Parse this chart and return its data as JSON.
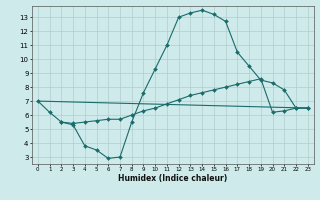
{
  "xlabel": "Humidex (Indice chaleur)",
  "bg_color": "#ceeaea",
  "grid_color": "#b0cccc",
  "line_color": "#1a6b6b",
  "xlim": [
    -0.5,
    23.5
  ],
  "ylim": [
    2.5,
    13.8
  ],
  "xticks": [
    0,
    1,
    2,
    3,
    4,
    5,
    6,
    7,
    8,
    9,
    10,
    11,
    12,
    13,
    14,
    15,
    16,
    17,
    18,
    19,
    20,
    21,
    22,
    23
  ],
  "yticks": [
    3,
    4,
    5,
    6,
    7,
    8,
    9,
    10,
    11,
    12,
    13
  ],
  "line1_x": [
    0,
    1,
    2,
    3,
    4,
    5,
    6,
    7,
    8,
    9,
    10,
    11,
    12,
    13,
    14,
    15,
    16,
    17,
    18,
    19,
    20,
    21,
    22,
    23
  ],
  "line1_y": [
    7.0,
    6.2,
    5.5,
    5.3,
    3.8,
    3.5,
    2.9,
    3.0,
    5.5,
    7.6,
    9.3,
    11.0,
    13.0,
    13.3,
    13.5,
    13.2,
    12.7,
    10.5,
    9.5,
    8.5,
    8.3,
    7.8,
    6.5,
    6.5
  ],
  "line2_x": [
    0,
    23
  ],
  "line2_y": [
    7.0,
    6.5
  ],
  "line3_x": [
    2,
    3,
    4,
    5,
    6,
    7,
    8,
    9,
    10,
    11,
    12,
    13,
    14,
    15,
    16,
    17,
    18,
    19,
    20,
    21,
    22,
    23
  ],
  "line3_y": [
    5.5,
    5.4,
    5.5,
    5.6,
    5.7,
    5.7,
    6.0,
    6.3,
    6.5,
    6.8,
    7.1,
    7.4,
    7.6,
    7.8,
    8.0,
    8.2,
    8.4,
    8.6,
    6.2,
    6.3,
    6.5,
    6.5
  ]
}
